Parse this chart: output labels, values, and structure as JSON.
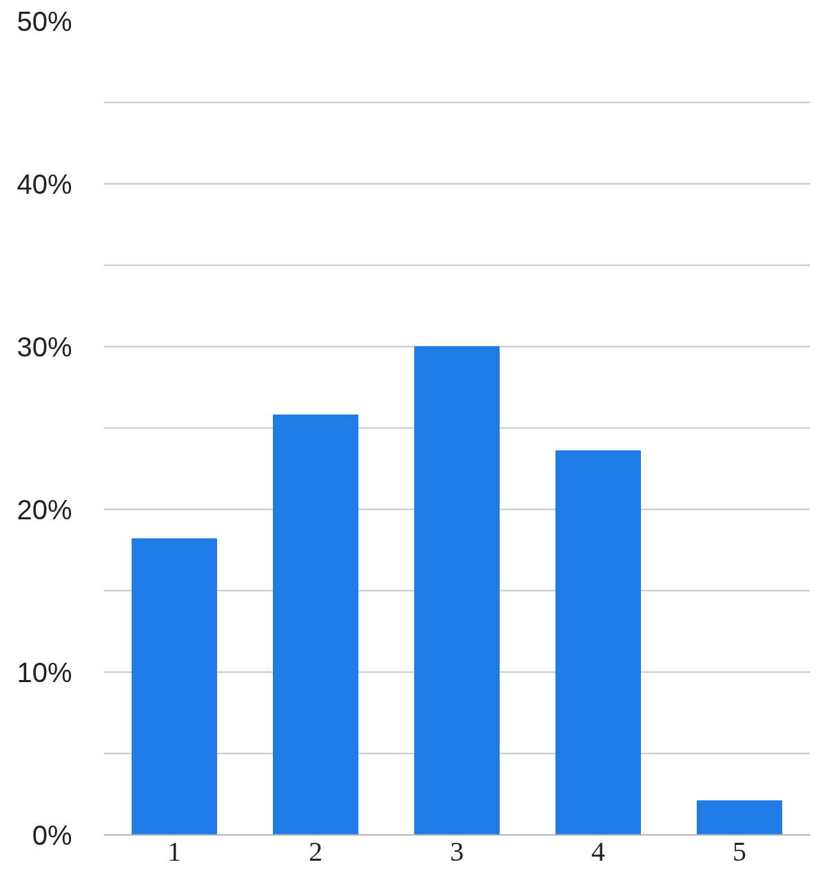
{
  "chart_data": {
    "type": "bar",
    "categories": [
      "1",
      "2",
      "3",
      "4",
      "5"
    ],
    "values": [
      18.2,
      25.8,
      30.0,
      23.6,
      2.1
    ],
    "color": "#1f7be6",
    "ylim": [
      0,
      50
    ],
    "yticks": [
      {
        "value": 0,
        "label": "0%"
      },
      {
        "value": 5,
        "label": null
      },
      {
        "value": 10,
        "label": "10%"
      },
      {
        "value": 15,
        "label": null
      },
      {
        "value": 20,
        "label": "20%"
      },
      {
        "value": 25,
        "label": null
      },
      {
        "value": 30,
        "label": "30%"
      },
      {
        "value": 35,
        "label": null
      },
      {
        "value": 40,
        "label": "40%"
      },
      {
        "value": 45,
        "label": null
      },
      {
        "value": 50,
        "label": "50%"
      }
    ],
    "grid": "y"
  }
}
